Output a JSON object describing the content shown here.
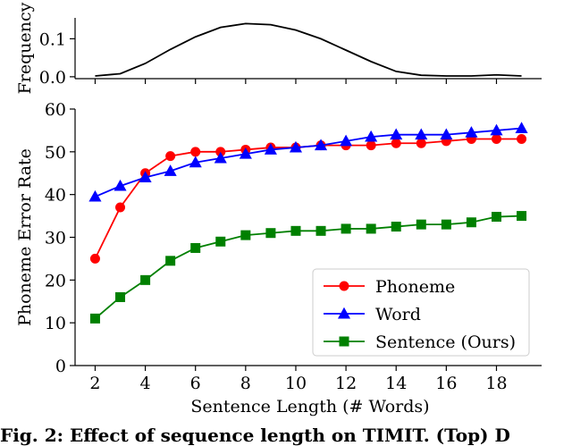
{
  "chart_data": [
    {
      "type": "line",
      "id": "top",
      "ylabel": "Frequency",
      "xlim": [
        1.2,
        19.8
      ],
      "ylim": [
        -0.005,
        0.155
      ],
      "yticks": [
        0.0,
        0.1
      ],
      "ytick_labels": [
        "0.0",
        "0.1"
      ],
      "xticks": [
        2,
        4,
        6,
        8,
        10,
        12,
        14,
        16,
        18
      ],
      "series": [
        {
          "color": "#000000",
          "x": [
            2,
            3,
            4,
            5,
            6,
            7,
            8,
            9,
            10,
            11,
            12,
            13,
            14,
            15,
            16,
            17,
            18,
            19
          ],
          "values": [
            0.002,
            0.008,
            0.035,
            0.072,
            0.105,
            0.13,
            0.14,
            0.137,
            0.123,
            0.1,
            0.07,
            0.04,
            0.014,
            0.004,
            0.002,
            0.002,
            0.005,
            0.002
          ]
        }
      ]
    },
    {
      "type": "line",
      "id": "bottom",
      "xlabel": "Sentence Length (# Words)",
      "ylabel": "Phoneme Error Rate",
      "xlim": [
        1.2,
        19.8
      ],
      "ylim": [
        0,
        60
      ],
      "xticks": [
        2,
        4,
        6,
        8,
        10,
        12,
        14,
        16,
        18
      ],
      "xtick_labels": [
        "2",
        "4",
        "6",
        "8",
        "10",
        "12",
        "14",
        "16",
        "18"
      ],
      "yticks": [
        0,
        10,
        20,
        30,
        40,
        50,
        60
      ],
      "ytick_labels": [
        "0",
        "10",
        "20",
        "30",
        "40",
        "50",
        "60"
      ],
      "legend": "lower-right",
      "series": [
        {
          "name": "Phoneme",
          "color": "#ff0000",
          "marker": "circle",
          "x": [
            2,
            3,
            4,
            5,
            6,
            7,
            8,
            9,
            10,
            11,
            12,
            13,
            14,
            15,
            16,
            17,
            18,
            19
          ],
          "values": [
            25.0,
            37.0,
            45.0,
            49.0,
            50.0,
            50.0,
            50.5,
            51.0,
            51.0,
            51.5,
            51.5,
            51.5,
            52.0,
            52.0,
            52.5,
            53.0,
            53.0,
            53.0
          ]
        },
        {
          "name": "Word",
          "color": "#0000ff",
          "marker": "triangle",
          "x": [
            2,
            3,
            4,
            5,
            6,
            7,
            8,
            9,
            10,
            11,
            12,
            13,
            14,
            15,
            16,
            17,
            18,
            19
          ],
          "values": [
            39.5,
            42.0,
            44.0,
            45.5,
            47.5,
            48.5,
            49.5,
            50.5,
            51.0,
            51.5,
            52.5,
            53.5,
            54.0,
            54.0,
            54.0,
            54.5,
            55.0,
            55.5
          ]
        },
        {
          "name": "Sentence (Ours)",
          "color": "#008000",
          "marker": "square",
          "x": [
            2,
            3,
            4,
            5,
            6,
            7,
            8,
            9,
            10,
            11,
            12,
            13,
            14,
            15,
            16,
            17,
            18,
            19
          ],
          "values": [
            11.0,
            16.0,
            20.0,
            24.5,
            27.5,
            29.0,
            30.5,
            31.0,
            31.5,
            31.5,
            32.0,
            32.0,
            32.5,
            33.0,
            33.0,
            33.5,
            34.8,
            35.0
          ]
        }
      ]
    }
  ],
  "caption": "Fig. 2: Effect of sequence length on TIMIT. (Top) D"
}
